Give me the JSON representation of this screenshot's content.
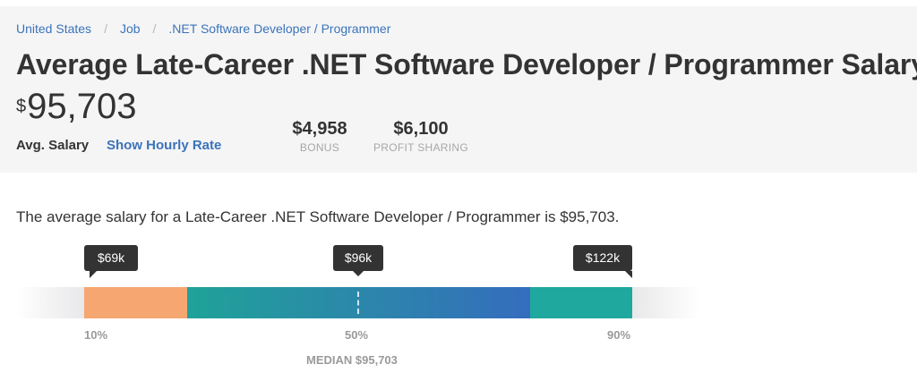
{
  "breadcrumb": [
    "United States",
    "Job",
    ".NET Software Developer / Programmer"
  ],
  "title": "Average Late-Career .NET Software Developer / Programmer Salary",
  "salary": {
    "currency": "$",
    "amount": "95,703"
  },
  "avg_label": "Avg. Salary",
  "hourly_link": "Show Hourly Rate",
  "stats": [
    {
      "value": "$4,958",
      "label": "BONUS"
    },
    {
      "value": "$6,100",
      "label": "PROFIT SHARING"
    }
  ],
  "description": "The average salary for a Late-Career .NET Software Developer / Programmer is $95,703.",
  "range": {
    "p10_tip": "$69k",
    "median_tip": "$96k",
    "p90_tip": "$122k",
    "p10_label": "10%",
    "p50_label": "50%",
    "p90_label": "90%",
    "median_label": "MEDIAN $95,703"
  },
  "colors": {
    "low_segment": "#f5a671",
    "mid_segment_start": "#1fa299",
    "mid_segment_end": "#356dbe",
    "high_segment": "#1fa89d",
    "link": "#3b73b9"
  }
}
